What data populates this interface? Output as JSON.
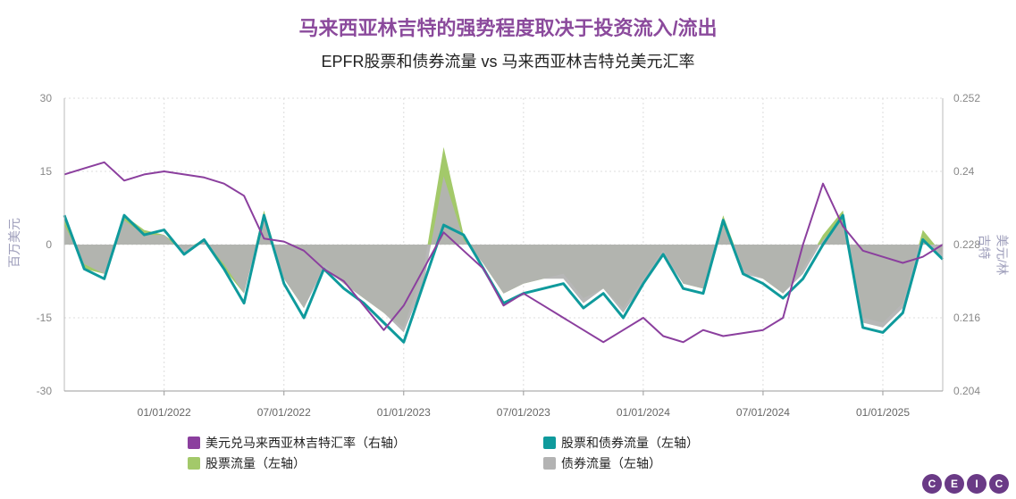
{
  "header": {
    "title": "马来西亚林吉特的强势程度取决于投资流入/流出",
    "subtitle": "EPFR股票和债券流量 vs 马来西亚林吉特兑美元汇率"
  },
  "logo": {
    "letters": [
      "C",
      "E",
      "I",
      "C"
    ]
  },
  "colors": {
    "fx": "#8b3f9e",
    "total": "#0f9a9c",
    "equity": "#a3c96a",
    "bond": "#b3b3b3"
  },
  "chart_data": {
    "type": "line",
    "x_ticks": [
      "01/01/2022",
      "07/01/2022",
      "01/01/2023",
      "07/01/2023",
      "01/01/2024",
      "07/01/2024",
      "01/01/2025"
    ],
    "x_tick_pos": [
      5,
      11,
      17,
      23,
      29,
      35,
      41
    ],
    "x_range": [
      0,
      44
    ],
    "y_left": {
      "label": "百万美元",
      "ticks": [
        "30",
        "15",
        "0",
        "-15",
        "-30"
      ],
      "range": [
        -30,
        30
      ]
    },
    "y_right": {
      "label": "美元/林吉特",
      "ticks": [
        "0.252",
        "0.24",
        "0.228",
        "0.216",
        "0.204"
      ],
      "range": [
        0.204,
        0.252
      ]
    },
    "x": [
      0,
      1,
      2,
      3,
      4,
      5,
      6,
      7,
      8,
      9,
      10,
      11,
      12,
      13,
      14,
      15,
      16,
      17,
      18,
      19,
      20,
      21,
      22,
      23,
      24,
      25,
      26,
      27,
      28,
      29,
      30,
      31,
      32,
      33,
      34,
      35,
      36,
      37,
      38,
      39,
      40,
      41,
      42,
      43,
      44
    ],
    "series": [
      {
        "name": "美元兑马来西亚林吉特汇率（右轴）",
        "axis": "right",
        "values": [
          0.2395,
          0.2405,
          0.2415,
          0.2385,
          0.2395,
          0.24,
          0.2395,
          0.239,
          0.238,
          0.236,
          0.229,
          0.2285,
          0.227,
          0.224,
          0.222,
          0.218,
          0.214,
          0.218,
          0.224,
          0.23,
          0.227,
          0.224,
          0.218,
          0.22,
          0.218,
          0.216,
          0.214,
          0.212,
          0.214,
          0.216,
          0.213,
          0.212,
          0.214,
          0.213,
          0.2135,
          0.214,
          0.216,
          0.228,
          0.238,
          0.231,
          0.227,
          0.226,
          0.225,
          0.226,
          0.228
        ]
      },
      {
        "name": "股票和债券流量（左轴）",
        "axis": "left",
        "values": [
          6,
          -5,
          -7,
          6,
          2,
          3,
          -2,
          1,
          -5,
          -12,
          6,
          -8,
          -15,
          -5,
          -9,
          -12,
          -16,
          -20,
          -8,
          4,
          2,
          -5,
          -12,
          -10,
          -9,
          -8,
          -13,
          -10,
          -15,
          -8,
          -2,
          -9,
          -10,
          5,
          -6,
          -8,
          -11,
          -7,
          0,
          6,
          -17,
          -18,
          -14,
          1,
          -3
        ]
      },
      {
        "name": "股票流量（左轴）",
        "axis": "left",
        "values": [
          6,
          -5,
          -6,
          6,
          3,
          2,
          -1,
          1,
          -5,
          -10,
          7,
          -7,
          -13,
          -4,
          -8,
          -11,
          -14,
          -17,
          -5,
          20,
          2,
          -4,
          -10,
          -8,
          -7,
          -6,
          -11,
          -9,
          -13,
          -7,
          -1,
          -8,
          -9,
          6,
          -5,
          -7,
          -10,
          -5,
          2,
          7,
          -15,
          -16,
          -12,
          3,
          -2
        ]
      },
      {
        "name": "债券流量（左轴）",
        "axis": "left",
        "values": [
          4,
          -4,
          -6,
          5,
          2,
          2,
          -2,
          1,
          -4,
          -10,
          6,
          -7,
          -13,
          -5,
          -8,
          -11,
          -14,
          -18,
          -8,
          14,
          1,
          -4,
          -10,
          -8,
          -7,
          -7,
          -12,
          -9,
          -14,
          -8,
          -2,
          -8,
          -9,
          4,
          -6,
          -7,
          -10,
          -6,
          1,
          5,
          -16,
          -17,
          -13,
          1,
          -3
        ]
      }
    ]
  },
  "legend": {
    "fx": "美元兑马来西亚林吉特汇率（右轴）",
    "total": "股票和债券流量（左轴）",
    "equity": "股票流量（左轴）",
    "bond": "债券流量（左轴）"
  }
}
